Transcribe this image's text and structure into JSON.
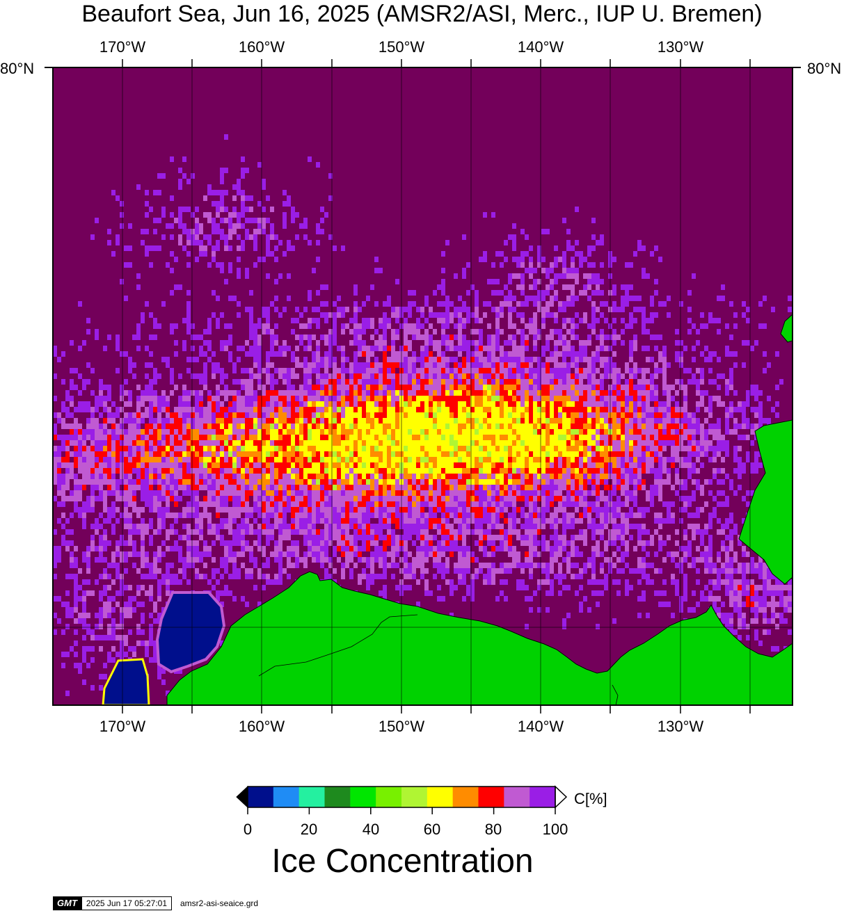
{
  "title": "Beaufort Sea, Jun 16, 2025 (AMSR2/ASI, Merc., IUP U. Bremen)",
  "lon_labels": [
    "170°W",
    "160°W",
    "150°W",
    "140°W",
    "130°W"
  ],
  "lat_label": "80°N",
  "colorbar": {
    "unit": "C[%]",
    "title": "Ice Concentration",
    "ticks": [
      "0",
      "20",
      "40",
      "60",
      "80",
      "100"
    ],
    "colors": [
      "#000f8c",
      "#1f8cf5",
      "#24f0a0",
      "#1e8a1e",
      "#00e600",
      "#78f000",
      "#b0f533",
      "#ffff00",
      "#ff8c00",
      "#ff0000",
      "#c05ad2",
      "#9a1ee6"
    ],
    "under_color": "#000000",
    "over_color": "#ffffff"
  },
  "colors": {
    "ocean_open": "#73005a",
    "land": "#00d200",
    "ice_low": "#9a1ee6",
    "ice_mid": "#c05ad2",
    "ice_red": "#ff0000",
    "ice_orange": "#ff8c00",
    "ice_yellow": "#ffff00",
    "ice_greenyellow": "#b0f533",
    "lagoon": "#000f8c"
  },
  "footer": {
    "logo": "GMT",
    "timestamp": "2025 Jun 17 05:27:01",
    "filename": "amsr2-asi-seaice.grd"
  }
}
